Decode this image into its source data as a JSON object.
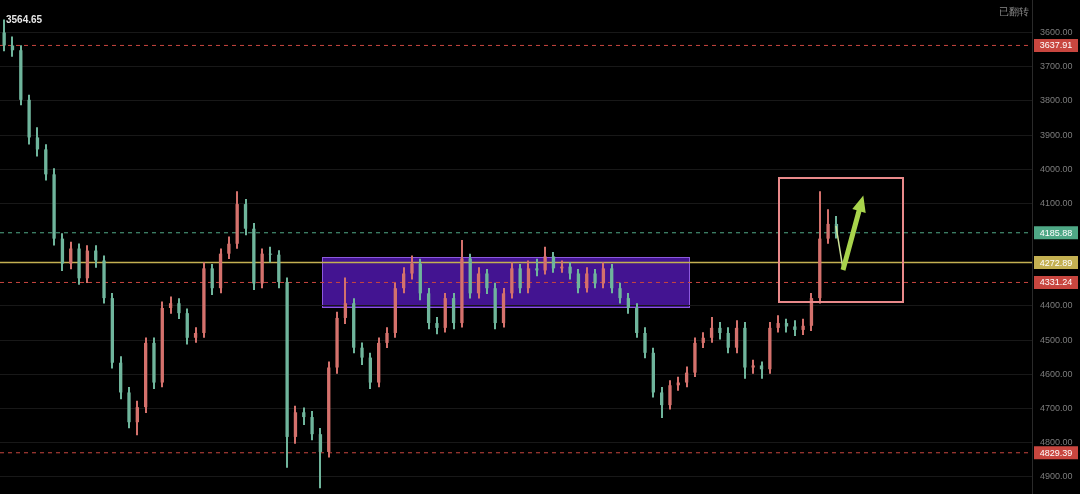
{
  "chart_data": {
    "type": "candlestick",
    "categories": [
      null,
      null,
      null,
      null,
      null,
      null,
      null,
      null,
      null,
      null,
      null,
      null,
      null,
      null,
      null,
      null,
      null,
      null,
      null,
      null,
      null,
      null,
      null,
      null,
      null,
      null,
      null,
      null,
      null,
      null,
      null,
      null,
      null,
      null,
      null,
      null,
      null,
      null,
      null,
      null,
      null,
      null,
      null,
      null,
      null,
      null,
      null,
      null,
      null,
      null,
      null,
      null,
      null,
      null,
      null,
      null,
      null,
      null,
      null,
      null,
      null,
      null,
      null,
      null,
      null,
      null,
      null,
      null,
      null,
      null,
      null,
      null,
      null,
      null,
      null,
      null,
      null,
      null,
      null,
      null,
      null,
      null,
      null,
      null,
      null,
      null,
      null,
      null,
      null,
      null,
      null,
      null,
      null,
      null,
      null,
      null,
      null,
      null,
      null,
      null,
      null,
      null,
      null,
      null,
      null,
      null,
      null,
      null,
      null,
      null,
      null,
      null,
      null,
      null,
      null,
      null,
      null,
      null,
      null,
      null,
      null,
      null,
      null,
      null
    ],
    "ohlc": [
      [
        3600,
        3652,
        3564.65,
        3638
      ],
      [
        3638,
        3668,
        3615,
        3652
      ],
      [
        3652,
        3810,
        3640,
        3797
      ],
      [
        3797,
        3925,
        3785,
        3907
      ],
      [
        3907,
        3960,
        3880,
        3942
      ],
      [
        3942,
        4030,
        3930,
        4015
      ],
      [
        4015,
        4220,
        4000,
        4203
      ],
      [
        4203,
        4295,
        4190,
        4276
      ],
      [
        4276,
        4290,
        4215,
        4232
      ],
      [
        4232,
        4335,
        4220,
        4319
      ],
      [
        4319,
        4330,
        4225,
        4238
      ],
      [
        4238,
        4285,
        4225,
        4267
      ],
      [
        4267,
        4390,
        4255,
        4377
      ],
      [
        4377,
        4580,
        4365,
        4566
      ],
      [
        4566,
        4670,
        4550,
        4653
      ],
      [
        4653,
        4755,
        4640,
        4740
      ],
      [
        4740,
        4775,
        4680,
        4696
      ],
      [
        4696,
        4710,
        4495,
        4508
      ],
      [
        4508,
        4640,
        4495,
        4624
      ],
      [
        4624,
        4635,
        4390,
        4406
      ],
      [
        4406,
        4420,
        4375,
        4392
      ],
      [
        4392,
        4435,
        4380,
        4421
      ],
      [
        4421,
        4510,
        4410,
        4493
      ],
      [
        4493,
        4505,
        4465,
        4479
      ],
      [
        4479,
        4490,
        4275,
        4290
      ],
      [
        4290,
        4365,
        4280,
        4348
      ],
      [
        4348,
        4360,
        4235,
        4247
      ],
      [
        4247,
        4260,
        4200,
        4218
      ],
      [
        4218,
        4230,
        4067,
        4102
      ],
      [
        4102,
        4190,
        4090,
        4174
      ],
      [
        4174,
        4350,
        4160,
        4334
      ],
      [
        4334,
        4345,
        4235,
        4247
      ],
      [
        4247,
        4270,
        4230,
        4250
      ],
      [
        4250,
        4345,
        4240,
        4330
      ],
      [
        4330,
        4870,
        4320,
        4783
      ],
      [
        4783,
        4800,
        4695,
        4711
      ],
      [
        4711,
        4745,
        4700,
        4725
      ],
      [
        4725,
        4790,
        4710,
        4775
      ],
      [
        4775,
        4930,
        4760,
        4827
      ],
      [
        4827,
        4840,
        4565,
        4580
      ],
      [
        4580,
        4595,
        4420,
        4435
      ],
      [
        4435,
        4450,
        4320,
        4392
      ],
      [
        4392,
        4535,
        4380,
        4522
      ],
      [
        4522,
        4570,
        4510,
        4551
      ],
      [
        4551,
        4640,
        4540,
        4624
      ],
      [
        4624,
        4635,
        4495,
        4508
      ],
      [
        4508,
        4520,
        4465,
        4479
      ],
      [
        4479,
        4490,
        4335,
        4348
      ],
      [
        4348,
        4360,
        4290,
        4305
      ],
      [
        4305,
        4320,
        4255,
        4276
      ],
      [
        4276,
        4380,
        4265,
        4363
      ],
      [
        4363,
        4465,
        4350,
        4450
      ],
      [
        4450,
        4480,
        4435,
        4464
      ],
      [
        4464,
        4475,
        4365,
        4377
      ],
      [
        4377,
        4465,
        4365,
        4450
      ],
      [
        4450,
        4460,
        4210,
        4261
      ],
      [
        4261,
        4375,
        4250,
        4363
      ],
      [
        4363,
        4375,
        4290,
        4305
      ],
      [
        4305,
        4362,
        4295,
        4348
      ],
      [
        4348,
        4465,
        4335,
        4450
      ],
      [
        4450,
        4460,
        4350,
        4363
      ],
      [
        4363,
        4375,
        4275,
        4290
      ],
      [
        4290,
        4360,
        4280,
        4348
      ],
      [
        4348,
        4360,
        4270,
        4290
      ],
      [
        4290,
        4310,
        4265,
        4296
      ],
      [
        4296,
        4305,
        4230,
        4255
      ],
      [
        4255,
        4300,
        4245,
        4290
      ],
      [
        4290,
        4300,
        4270,
        4285
      ],
      [
        4285,
        4320,
        4275,
        4305
      ],
      [
        4305,
        4360,
        4295,
        4348
      ],
      [
        4348,
        4358,
        4290,
        4305
      ],
      [
        4305,
        4345,
        4295,
        4334
      ],
      [
        4334,
        4345,
        4275,
        4290
      ],
      [
        4290,
        4360,
        4280,
        4348
      ],
      [
        4348,
        4390,
        4335,
        4377
      ],
      [
        4377,
        4420,
        4365,
        4406
      ],
      [
        4406,
        4490,
        4395,
        4479
      ],
      [
        4479,
        4550,
        4465,
        4537
      ],
      [
        4537,
        4665,
        4525,
        4653
      ],
      [
        4653,
        4725,
        4640,
        4690
      ],
      [
        4690,
        4700,
        4620,
        4632
      ],
      [
        4632,
        4645,
        4610,
        4624
      ],
      [
        4624,
        4635,
        4580,
        4595
      ],
      [
        4595,
        4605,
        4495,
        4508
      ],
      [
        4508,
        4520,
        4480,
        4493
      ],
      [
        4493,
        4505,
        4435,
        4464
      ],
      [
        4464,
        4495,
        4450,
        4479
      ],
      [
        4479,
        4535,
        4465,
        4522
      ],
      [
        4522,
        4535,
        4445,
        4464
      ],
      [
        4464,
        4610,
        4450,
        4580
      ],
      [
        4580,
        4595,
        4560,
        4574
      ],
      [
        4574,
        4610,
        4565,
        4585
      ],
      [
        4585,
        4595,
        4450,
        4464
      ],
      [
        4464,
        4475,
        4430,
        4450
      ],
      [
        4450,
        4475,
        4440,
        4460
      ],
      [
        4460,
        4485,
        4445,
        4470
      ],
      [
        4470,
        4482,
        4440,
        4458
      ],
      [
        4458,
        4470,
        4365,
        4377
      ],
      [
        4377,
        4390,
        4067,
        4203
      ],
      [
        4203,
        4215,
        4120,
        4160
      ],
      [
        4160,
        4200,
        4140,
        4189
      ],
      null,
      null,
      null,
      null,
      null,
      null,
      null,
      null,
      null,
      null,
      null,
      null,
      null,
      null,
      null,
      null,
      null,
      null,
      null,
      null,
      null,
      null,
      null
    ],
    "colors": [
      "#6fb59c",
      "#6fb59c",
      "#6fb59c",
      "#6fb59c",
      "#6fb59c",
      "#6fb59c",
      "#6fb59c",
      "#6fb59c",
      "#d4716c",
      "#6fb59c",
      "#d4716c",
      "#6fb59c",
      "#6fb59c",
      "#6fb59c",
      "#6fb59c",
      "#6fb59c",
      "#d4716c",
      "#d4716c",
      "#6fb59c",
      "#d4716c",
      "#d4716c",
      "#6fb59c",
      "#6fb59c",
      "#d4716c",
      "#d4716c",
      "#6fb59c",
      "#d4716c",
      "#d4716c",
      "#d4716c",
      "#6fb59c",
      "#6fb59c",
      "#d4716c",
      "#6fb59c",
      "#6fb59c",
      "#6fb59c",
      "#d4716c",
      "#6fb59c",
      "#6fb59c",
      "#6fb59c",
      "#d4716c",
      "#d4716c",
      "#d4716c",
      "#6fb59c",
      "#6fb59c",
      "#6fb59c",
      "#d4716c",
      "#d4716c",
      "#d4716c",
      "#d4716c",
      "#d4716c",
      "#6fb59c",
      "#6fb59c",
      "#6fb59c",
      "#d4716c",
      "#6fb59c",
      "#d4716c",
      "#6fb59c",
      "#d4716c",
      "#6fb59c",
      "#6fb59c",
      "#d4716c",
      "#d4716c",
      "#6fb59c",
      "#d4716c",
      "#6fb59c",
      "#d4716c",
      "#6fb59c",
      "#d4716c",
      "#6fb59c",
      "#6fb59c",
      "#d4716c",
      "#6fb59c",
      "#d4716c",
      "#6fb59c",
      "#6fb59c",
      "#6fb59c",
      "#6fb59c",
      "#6fb59c",
      "#6fb59c",
      "#6fb59c",
      "#d4716c",
      "#d4716c",
      "#d4716c",
      "#d4716c",
      "#d4716c",
      "#d4716c",
      "#6fb59c",
      "#6fb59c",
      "#d4716c",
      "#6fb59c",
      "#d4716c",
      "#6fb59c",
      "#d4716c",
      "#d4716c",
      "#6fb59c",
      "#6fb59c",
      "#d4716c",
      "#d4716c",
      "#d4716c",
      "#d4716c",
      "#6fb59c",
      null,
      null,
      null,
      null,
      null,
      null,
      null,
      null,
      null,
      null,
      null,
      null,
      null,
      null,
      null,
      null,
      null,
      null,
      null,
      null,
      null,
      null,
      null
    ],
    "ylim": [
      4950,
      3505
    ],
    "yticks": [
      {
        "value": 3600,
        "label": "3600.00"
      },
      {
        "value": 3700,
        "label": "3700.00"
      },
      {
        "value": 3800,
        "label": "3800.00"
      },
      {
        "value": 3900,
        "label": "3900.00"
      },
      {
        "value": 4000,
        "label": "4000.00"
      },
      {
        "value": 4100,
        "label": "4100.00"
      },
      {
        "value": 4400,
        "label": "4400.00"
      },
      {
        "value": 4500,
        "label": "4500.00"
      },
      {
        "value": 4600,
        "label": "4600.00"
      },
      {
        "value": 4700,
        "label": "4700.00"
      },
      {
        "value": 4800,
        "label": "4800.00"
      },
      {
        "value": 4900,
        "label": "4900.00"
      }
    ],
    "grid": "y",
    "tick_labels": "y",
    "ref_lines": [
      {
        "axis": "y",
        "value": 3637.91,
        "label": "3637.91",
        "color": "#c8463f",
        "line_style": "dashed"
      },
      {
        "axis": "y",
        "value": 4185.88,
        "label": "4185.88",
        "color": "#4fa886",
        "line_style": "dashed"
      },
      {
        "axis": "y",
        "value": 4272.89,
        "label": "4272.89",
        "color": "#c4b052",
        "line_style": "solid"
      },
      {
        "axis": "y",
        "value": 4331.24,
        "label": "4331.24",
        "color": "#c8463f",
        "line_style": "dashed"
      },
      {
        "axis": "y",
        "value": 4829.39,
        "label": "4829.39",
        "color": "#c8463f",
        "line_style": "dashed"
      }
    ],
    "annotations": [
      "已翻转",
      "3564.65"
    ]
  }
}
